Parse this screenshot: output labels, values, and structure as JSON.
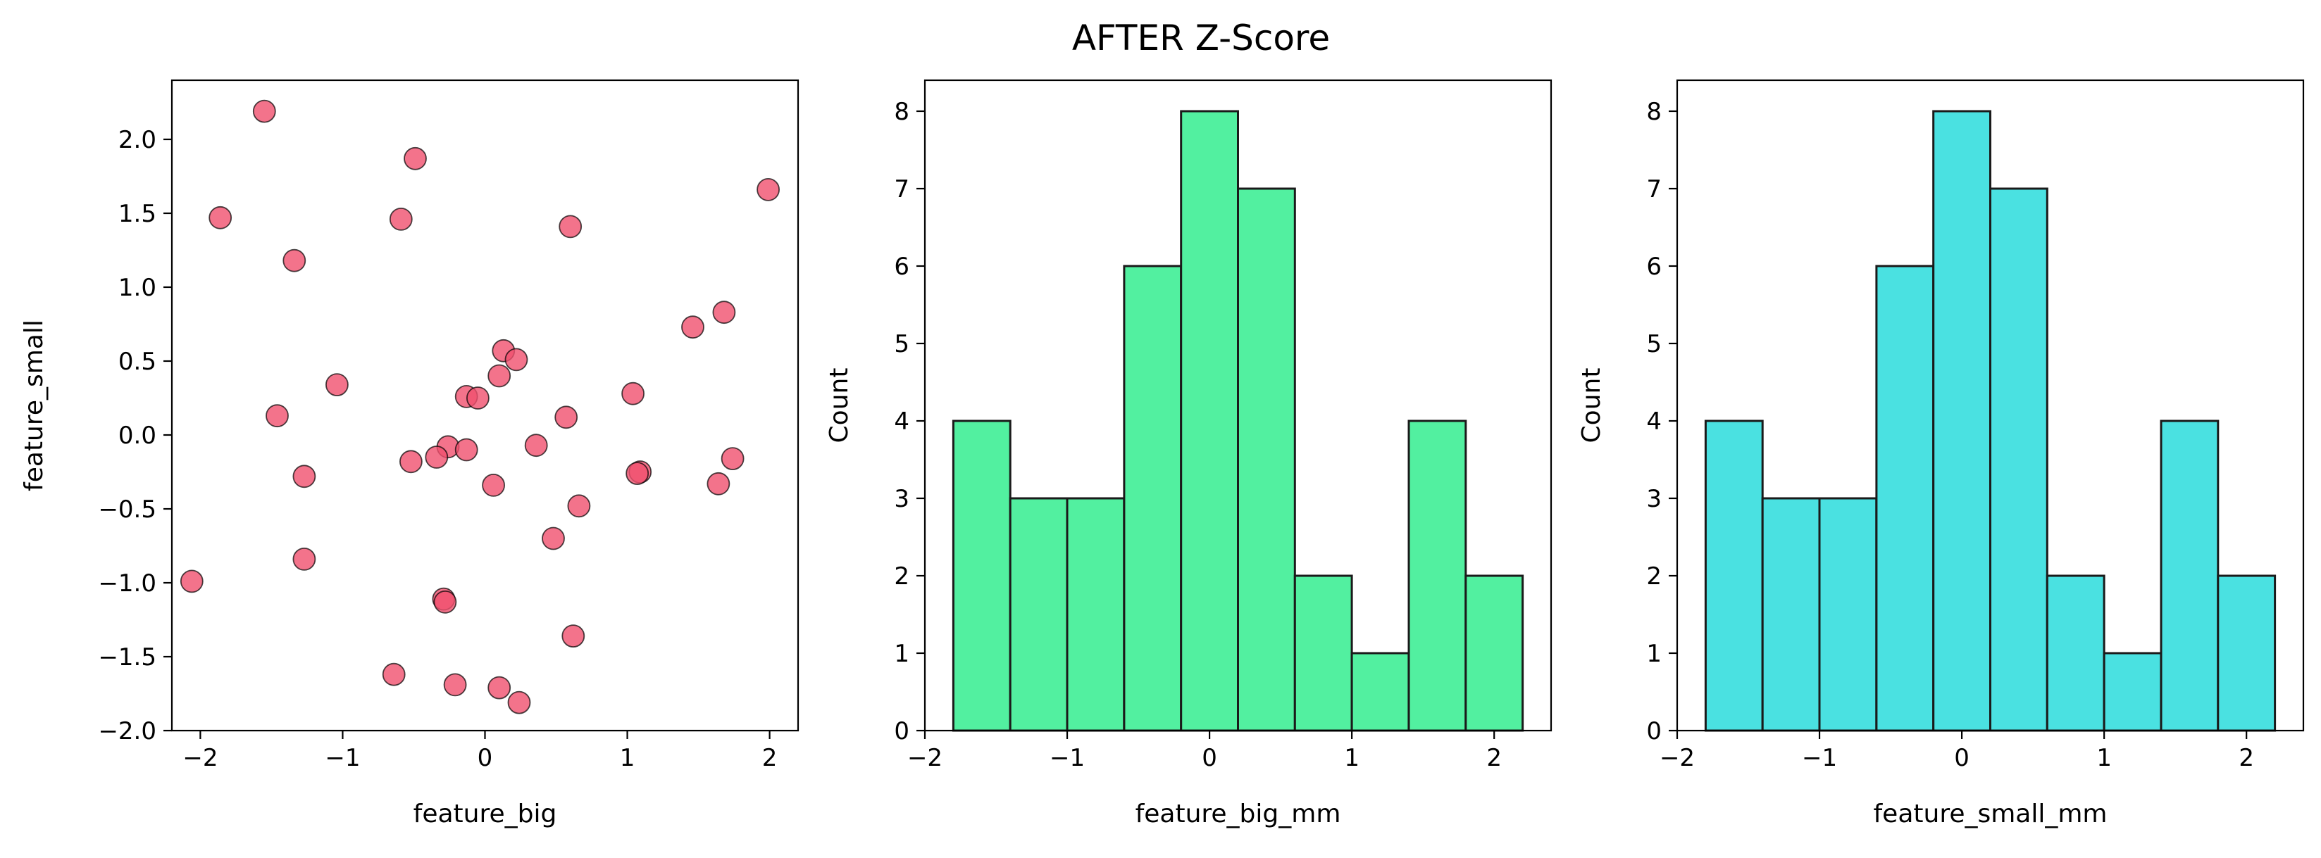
{
  "figure": {
    "title": "AFTER Z-Score"
  },
  "chart_data": [
    {
      "type": "scatter",
      "xlabel": "feature_big",
      "ylabel": "feature_small",
      "xlim": [
        -2.2,
        2.2
      ],
      "ylim": [
        -2.0,
        2.4
      ],
      "xticks": [
        -2,
        -1,
        0,
        1,
        2
      ],
      "yticks": [
        -2.0,
        -1.5,
        -1.0,
        -0.5,
        0.0,
        0.5,
        1.0,
        1.5,
        2.0
      ],
      "grid": false,
      "color": "#f0506e",
      "points": [
        [
          -1.55,
          2.19
        ],
        [
          -0.49,
          1.87
        ],
        [
          1.99,
          1.66
        ],
        [
          -1.86,
          1.47
        ],
        [
          -0.59,
          1.46
        ],
        [
          0.6,
          1.41
        ],
        [
          -1.34,
          1.18
        ],
        [
          1.68,
          0.83
        ],
        [
          1.46,
          0.73
        ],
        [
          0.13,
          0.57
        ],
        [
          0.22,
          0.51
        ],
        [
          0.1,
          0.4
        ],
        [
          -1.04,
          0.34
        ],
        [
          1.04,
          0.28
        ],
        [
          -0.13,
          0.26
        ],
        [
          -0.05,
          0.25
        ],
        [
          -1.46,
          0.13
        ],
        [
          0.57,
          0.12
        ],
        [
          0.36,
          -0.07
        ],
        [
          -0.26,
          -0.08
        ],
        [
          -0.13,
          -0.1
        ],
        [
          -0.34,
          -0.15
        ],
        [
          1.74,
          -0.16
        ],
        [
          -0.52,
          -0.18
        ],
        [
          1.09,
          -0.25
        ],
        [
          -1.27,
          -0.28
        ],
        [
          1.64,
          -0.33
        ],
        [
          0.06,
          -0.34
        ],
        [
          0.66,
          -0.48
        ],
        [
          0.48,
          -0.7
        ],
        [
          -1.27,
          -0.84
        ],
        [
          -2.06,
          -0.99
        ],
        [
          -0.29,
          -1.11
        ],
        [
          -0.28,
          -1.13
        ],
        [
          0.62,
          -1.36
        ],
        [
          -0.64,
          -1.62
        ],
        [
          -0.21,
          -1.69
        ],
        [
          0.1,
          -1.71
        ],
        [
          0.24,
          -1.81
        ],
        [
          1.07,
          -0.26
        ]
      ]
    },
    {
      "type": "bar",
      "xlabel": "feature_big_mm",
      "ylabel": "Count",
      "xlim": [
        -2.0,
        2.4
      ],
      "ylim": [
        0,
        8.4
      ],
      "xticks": [
        -2,
        -1,
        0,
        1,
        2
      ],
      "yticks": [
        0,
        1,
        2,
        3,
        4,
        5,
        6,
        7,
        8
      ],
      "grid": false,
      "color": "#52f0a0",
      "bin_edges": [
        -1.8,
        -1.4,
        -1.0,
        -0.6,
        -0.2,
        0.2,
        0.6,
        1.0,
        1.4,
        1.8,
        2.2
      ],
      "values": [
        4,
        3,
        3,
        6,
        8,
        7,
        2,
        1,
        4,
        2
      ]
    },
    {
      "type": "bar",
      "xlabel": "feature_small_mm",
      "ylabel": "Count",
      "xlim": [
        -2.0,
        2.4
      ],
      "ylim": [
        0,
        8.4
      ],
      "xticks": [
        -2,
        -1,
        0,
        1,
        2
      ],
      "yticks": [
        0,
        1,
        2,
        3,
        4,
        5,
        6,
        7,
        8
      ],
      "grid": false,
      "color": "#4ae1e1",
      "bin_edges": [
        -1.8,
        -1.4,
        -1.0,
        -0.6,
        -0.2,
        0.2,
        0.6,
        1.0,
        1.4,
        1.8,
        2.2
      ],
      "values": [
        4,
        3,
        3,
        6,
        8,
        7,
        2,
        1,
        4,
        2
      ]
    }
  ]
}
